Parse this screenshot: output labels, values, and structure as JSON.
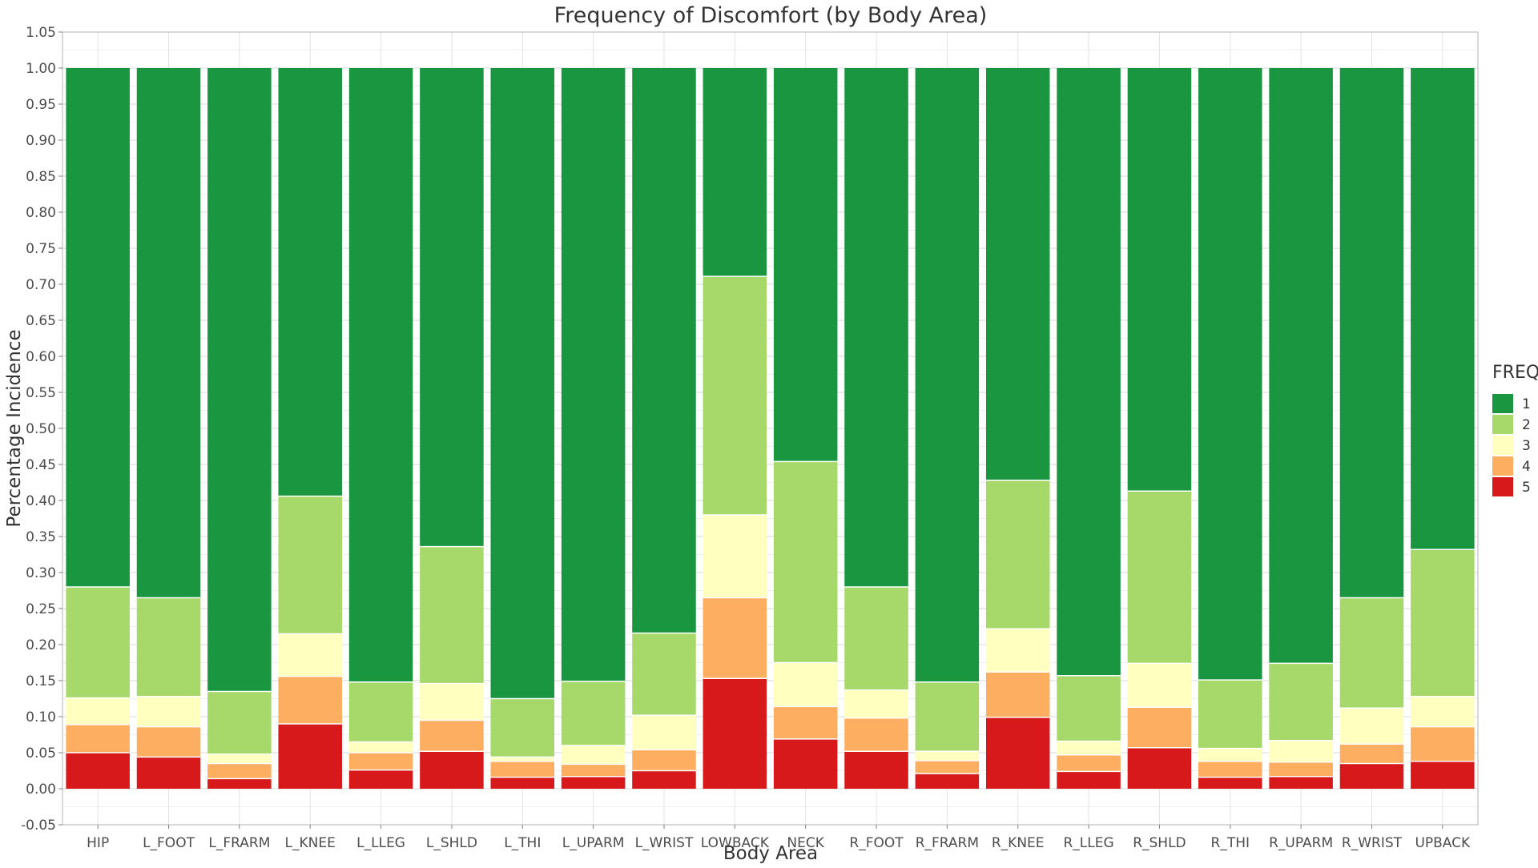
{
  "chart_data": {
    "type": "bar",
    "stacked": true,
    "title": "Frequency of Discomfort (by Body Area)",
    "xlabel": "Body Area",
    "ylabel": "Percentage Incidence",
    "ylim": [
      -0.05,
      1.05
    ],
    "yticks": [
      "-0.05",
      "0.00",
      "0.05",
      "0.10",
      "0.15",
      "0.20",
      "0.25",
      "0.30",
      "0.35",
      "0.40",
      "0.45",
      "0.50",
      "0.55",
      "0.60",
      "0.65",
      "0.70",
      "0.75",
      "0.80",
      "0.85",
      "0.90",
      "0.95",
      "1.00",
      "1.05"
    ],
    "grid": true,
    "legend": {
      "title": "FREQ",
      "position": "right"
    },
    "categories": [
      "HIP",
      "L_FOOT",
      "L_FRARM",
      "L_KNEE",
      "L_LLEG",
      "L_SHLD",
      "L_THI",
      "L_UPARM",
      "L_WRIST",
      "LOWBACK",
      "NECK",
      "R_FOOT",
      "R_FRARM",
      "R_KNEE",
      "R_LLEG",
      "R_SHLD",
      "R_THI",
      "R_UPARM",
      "R_WRIST",
      "UPBACK"
    ],
    "series": [
      {
        "name": "1",
        "color": "#1a9641",
        "values": [
          0.72,
          0.735,
          0.865,
          0.594,
          0.852,
          0.664,
          0.875,
          0.851,
          0.784,
          0.289,
          0.546,
          0.72,
          0.852,
          0.572,
          0.843,
          0.587,
          0.849,
          0.826,
          0.735,
          0.668
        ]
      },
      {
        "name": "2",
        "color": "#a6d96a",
        "values": [
          0.154,
          0.137,
          0.087,
          0.191,
          0.083,
          0.19,
          0.081,
          0.089,
          0.114,
          0.331,
          0.279,
          0.143,
          0.096,
          0.206,
          0.091,
          0.239,
          0.095,
          0.107,
          0.153,
          0.204
        ]
      },
      {
        "name": "3",
        "color": "#ffffc0",
        "values": [
          0.037,
          0.042,
          0.013,
          0.059,
          0.015,
          0.051,
          0.006,
          0.026,
          0.048,
          0.115,
          0.061,
          0.039,
          0.013,
          0.06,
          0.019,
          0.061,
          0.018,
          0.03,
          0.05,
          0.042
        ]
      },
      {
        "name": "4",
        "color": "#fdae61",
        "values": [
          0.039,
          0.042,
          0.021,
          0.066,
          0.024,
          0.043,
          0.022,
          0.017,
          0.029,
          0.112,
          0.045,
          0.046,
          0.018,
          0.063,
          0.023,
          0.056,
          0.022,
          0.02,
          0.027,
          0.048
        ]
      },
      {
        "name": "5",
        "color": "#d7191c",
        "values": [
          0.05,
          0.044,
          0.014,
          0.09,
          0.026,
          0.052,
          0.016,
          0.017,
          0.025,
          0.153,
          0.069,
          0.052,
          0.021,
          0.099,
          0.024,
          0.057,
          0.016,
          0.017,
          0.035,
          0.038
        ]
      }
    ]
  }
}
